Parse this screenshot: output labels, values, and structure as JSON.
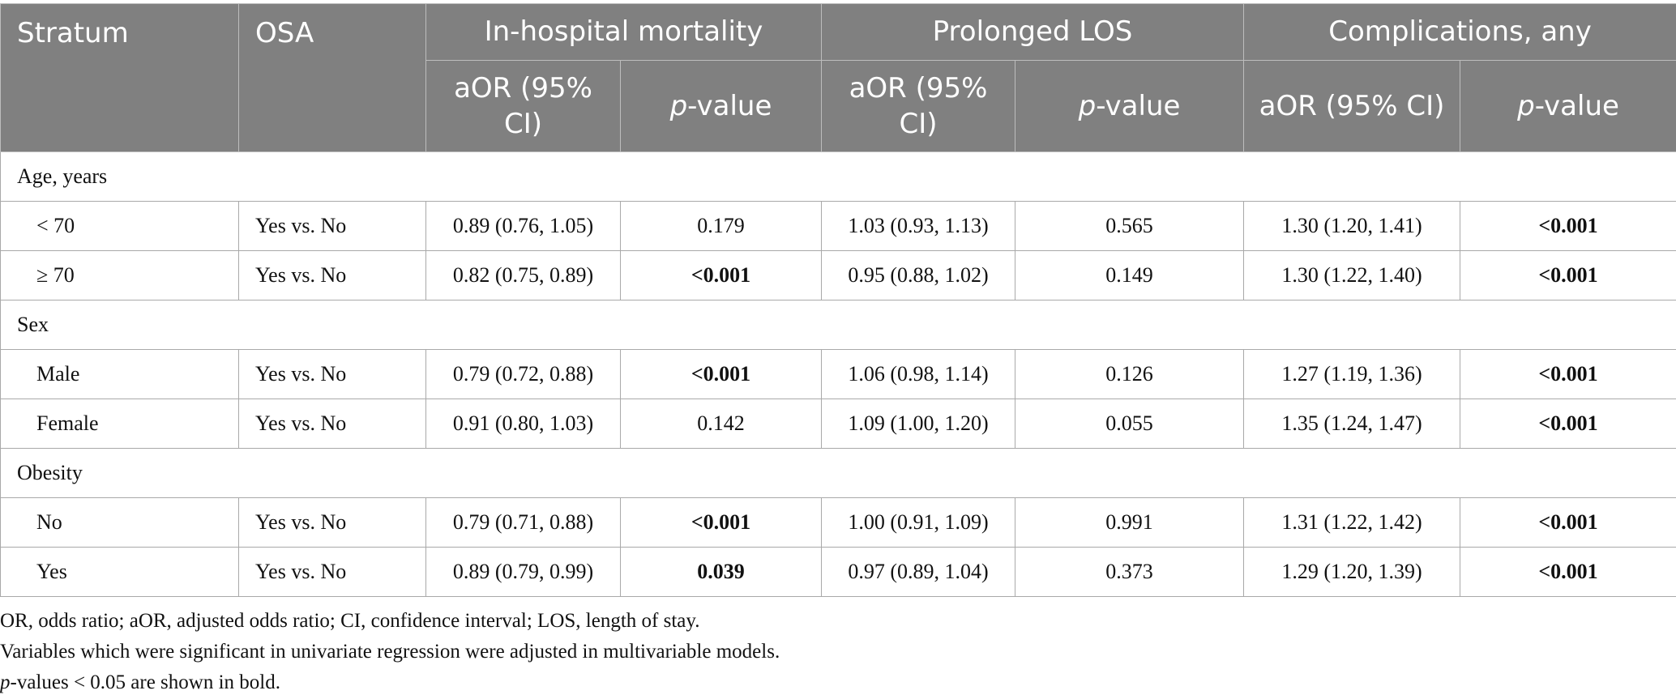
{
  "header": {
    "stratum": "Stratum",
    "osa": "OSA",
    "groups": [
      "In-hospital mortality",
      "Prolonged LOS",
      "Complications, any"
    ],
    "aor_label": "aOR (95% CI)",
    "p_italic": "p",
    "p_rest": "-value"
  },
  "sections": [
    {
      "label": "Age, years",
      "rows": [
        {
          "stratum": "< 70",
          "osa": "Yes vs. No",
          "mort_aor": "0.89 (0.76, 1.05)",
          "mort_p": "0.179",
          "los_aor": "1.03 (0.93, 1.13)",
          "los_p": "0.565",
          "comp_aor": "1.30 (1.20, 1.41)",
          "comp_p": "<0.001"
        },
        {
          "stratum": "≥ 70",
          "osa": "Yes vs. No",
          "mort_aor": "0.82 (0.75, 0.89)",
          "mort_p": "<0.001",
          "los_aor": "0.95 (0.88, 1.02)",
          "los_p": "0.149",
          "comp_aor": "1.30 (1.22, 1.40)",
          "comp_p": "<0.001"
        }
      ]
    },
    {
      "label": "Sex",
      "rows": [
        {
          "stratum": "Male",
          "osa": "Yes vs. No",
          "mort_aor": "0.79 (0.72, 0.88)",
          "mort_p": "<0.001",
          "los_aor": "1.06 (0.98, 1.14)",
          "los_p": "0.126",
          "comp_aor": "1.27 (1.19, 1.36)",
          "comp_p": "<0.001"
        },
        {
          "stratum": "Female",
          "osa": "Yes vs. No",
          "mort_aor": "0.91 (0.80, 1.03)",
          "mort_p": "0.142",
          "los_aor": "1.09 (1.00, 1.20)",
          "los_p": "0.055",
          "comp_aor": "1.35 (1.24, 1.47)",
          "comp_p": "<0.001"
        }
      ]
    },
    {
      "label": "Obesity",
      "rows": [
        {
          "stratum": "No",
          "osa": "Yes vs. No",
          "mort_aor": "0.79 (0.71, 0.88)",
          "mort_p": "<0.001",
          "los_aor": "1.00 (0.91, 1.09)",
          "los_p": "0.991",
          "comp_aor": "1.31 (1.22, 1.42)",
          "comp_p": "<0.001"
        },
        {
          "stratum": "Yes",
          "osa": "Yes vs. No",
          "mort_aor": "0.89 (0.79, 0.99)",
          "mort_p": "0.039",
          "los_aor": "0.97 (0.89, 1.04)",
          "los_p": "0.373",
          "comp_aor": "1.29 (1.20, 1.39)",
          "comp_p": "<0.001"
        }
      ]
    }
  ],
  "notes": {
    "line1": "OR, odds ratio; aOR, adjusted odds ratio; CI, confidence interval; LOS, length of stay.",
    "line2": "Variables which were significant in univariate regression were adjusted in multivariable models.",
    "line3_italic": "p",
    "line3_rest": "-values < 0.05 are shown in bold."
  },
  "colors": {
    "header_bg": "#808080",
    "header_text": "#ffffff",
    "grid": "#a9a9a9"
  }
}
